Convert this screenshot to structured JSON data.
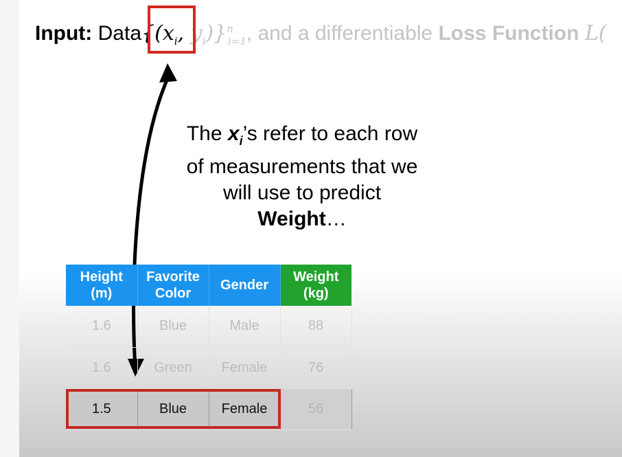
{
  "headline": {
    "input_label": "Input:",
    "data_word": "Data",
    "open": "{(",
    "x_var": "x",
    "x_sub": "i",
    "comma": ",",
    "y_var": "y",
    "y_sub": "i",
    "close": ")}",
    "range_sub": "i=1",
    "range_sup": "n",
    "middle_text": ", and a differentiable",
    "loss_label": "Loss Function",
    "loss_symbol": "L("
  },
  "caption": {
    "line1_prefix": "The",
    "line1_var": "x",
    "line1_sub": "i",
    "line1_suffix": "’s refer to each row",
    "line2": "of measurements that we",
    "line3": "will use to predict",
    "line4_bold": "Weight",
    "line4_tail": "…"
  },
  "table": {
    "headers": [
      "Height\n(m)",
      "Favorite\nColor",
      "Gender",
      "Weight\n(kg)"
    ],
    "header_lines": [
      [
        "Height",
        "(m)"
      ],
      [
        "Favorite",
        "Color"
      ],
      [
        "Gender",
        ""
      ],
      [
        "Weight",
        "(kg)"
      ]
    ],
    "rows": [
      [
        "1.6",
        "Blue",
        "Male",
        "88"
      ],
      [
        "1.6",
        "Green",
        "Female",
        "76"
      ],
      [
        "1.5",
        "Blue",
        "Female",
        "56"
      ]
    ],
    "highlighted_row": 2
  },
  "colors": {
    "header_blue": "#1a94ee",
    "header_green": "#21a32e",
    "highlight_red": "#d22a22"
  }
}
